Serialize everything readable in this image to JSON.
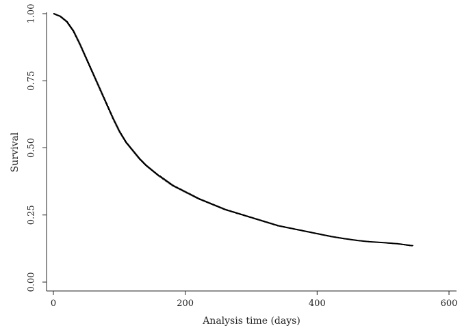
{
  "chart_data": {
    "type": "line",
    "xlabel": "Analysis time (days)",
    "ylabel": "Survival",
    "xlim": [
      0,
      600
    ],
    "ylim": [
      0,
      1
    ],
    "x_ticks": [
      0,
      200,
      400,
      600
    ],
    "x_tick_labels": [
      "0",
      "200",
      "400",
      "600"
    ],
    "y_ticks": [
      0,
      0.25,
      0.5,
      0.75,
      1
    ],
    "y_tick_labels": [
      "0.00",
      "0.25",
      "0.50",
      "0.75",
      "1.00"
    ],
    "grid": false,
    "series": [
      {
        "color": "#000000",
        "x": [
          0,
          10,
          20,
          30,
          40,
          50,
          60,
          70,
          80,
          90,
          100,
          110,
          120,
          130,
          140,
          150,
          160,
          180,
          200,
          220,
          240,
          260,
          280,
          300,
          320,
          340,
          360,
          380,
          400,
          420,
          440,
          460,
          480,
          500,
          520,
          545
        ],
        "y": [
          1.0,
          0.99,
          0.97,
          0.935,
          0.885,
          0.83,
          0.775,
          0.72,
          0.665,
          0.61,
          0.56,
          0.52,
          0.49,
          0.46,
          0.435,
          0.415,
          0.395,
          0.36,
          0.335,
          0.31,
          0.29,
          0.27,
          0.255,
          0.24,
          0.225,
          0.21,
          0.2,
          0.19,
          0.18,
          0.17,
          0.162,
          0.155,
          0.15,
          0.147,
          0.143,
          0.135
        ]
      }
    ]
  }
}
